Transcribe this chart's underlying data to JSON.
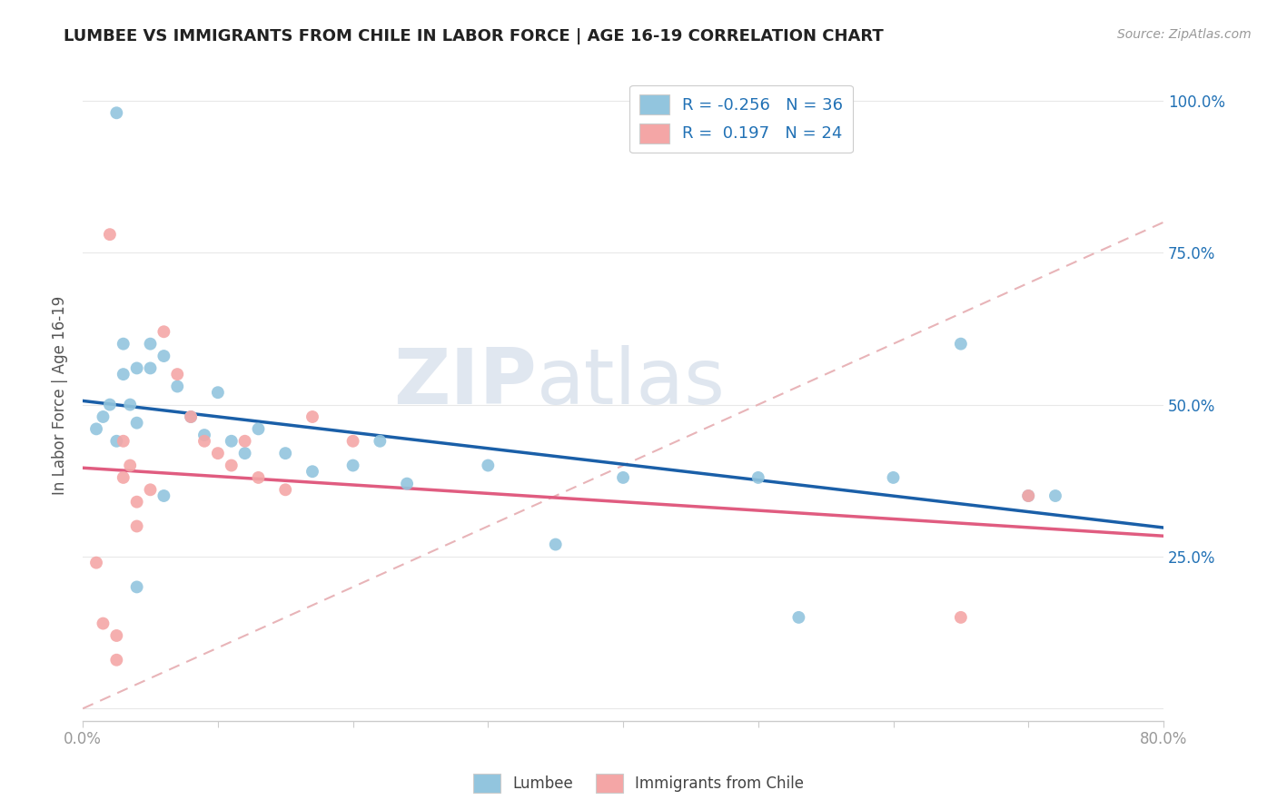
{
  "title": "LUMBEE VS IMMIGRANTS FROM CHILE IN LABOR FORCE | AGE 16-19 CORRELATION CHART",
  "source_text": "Source: ZipAtlas.com",
  "ylabel": "In Labor Force | Age 16-19",
  "xlim": [
    0.0,
    0.8
  ],
  "ylim": [
    -0.02,
    1.05
  ],
  "xticks": [
    0.0,
    0.1,
    0.2,
    0.3,
    0.4,
    0.5,
    0.6,
    0.7,
    0.8
  ],
  "xticklabels": [
    "0.0%",
    "",
    "",
    "",
    "",
    "",
    "",
    "",
    "80.0%"
  ],
  "yticks_right": [
    0.0,
    0.25,
    0.5,
    0.75,
    1.0
  ],
  "yticklabels_right": [
    "",
    "25.0%",
    "50.0%",
    "75.0%",
    "100.0%"
  ],
  "lumbee_color": "#92c5de",
  "chile_color": "#f4a6a6",
  "lumbee_line_color": "#1a5fa8",
  "chile_line_color": "#e05c80",
  "diagonal_color": "#e8b4b8",
  "diagonal_linestyle": "--",
  "legend_R_lumbee": "-0.256",
  "legend_N_lumbee": "36",
  "legend_R_chile": "0.197",
  "legend_N_chile": "24",
  "lumbee_x": [
    0.025,
    0.02,
    0.03,
    0.015,
    0.01,
    0.025,
    0.03,
    0.04,
    0.035,
    0.04,
    0.05,
    0.05,
    0.06,
    0.07,
    0.08,
    0.09,
    0.1,
    0.11,
    0.12,
    0.13,
    0.15,
    0.17,
    0.2,
    0.22,
    0.24,
    0.3,
    0.35,
    0.4,
    0.5,
    0.53,
    0.6,
    0.65,
    0.7,
    0.72,
    0.04,
    0.06
  ],
  "lumbee_y": [
    0.98,
    0.5,
    0.6,
    0.48,
    0.46,
    0.44,
    0.55,
    0.56,
    0.5,
    0.47,
    0.6,
    0.56,
    0.58,
    0.53,
    0.48,
    0.45,
    0.52,
    0.44,
    0.42,
    0.46,
    0.42,
    0.39,
    0.4,
    0.44,
    0.37,
    0.4,
    0.27,
    0.38,
    0.38,
    0.15,
    0.38,
    0.6,
    0.35,
    0.35,
    0.2,
    0.35
  ],
  "chile_x": [
    0.01,
    0.015,
    0.02,
    0.025,
    0.025,
    0.03,
    0.03,
    0.035,
    0.04,
    0.04,
    0.05,
    0.06,
    0.07,
    0.08,
    0.09,
    0.1,
    0.11,
    0.12,
    0.13,
    0.15,
    0.17,
    0.2,
    0.65,
    0.7
  ],
  "chile_y": [
    0.24,
    0.14,
    0.78,
    0.12,
    0.08,
    0.44,
    0.38,
    0.4,
    0.34,
    0.3,
    0.36,
    0.62,
    0.55,
    0.48,
    0.44,
    0.42,
    0.4,
    0.44,
    0.38,
    0.36,
    0.48,
    0.44,
    0.15,
    0.35
  ],
  "background_color": "#ffffff",
  "title_color": "#222222",
  "axis_label_color": "#555555",
  "tick_color": "#999999",
  "right_tick_color": "#2171b5",
  "grid_color": "#e8e8e8",
  "watermark_zip_color": "#d0d8e8",
  "watermark_atlas_color": "#c8d4e8"
}
